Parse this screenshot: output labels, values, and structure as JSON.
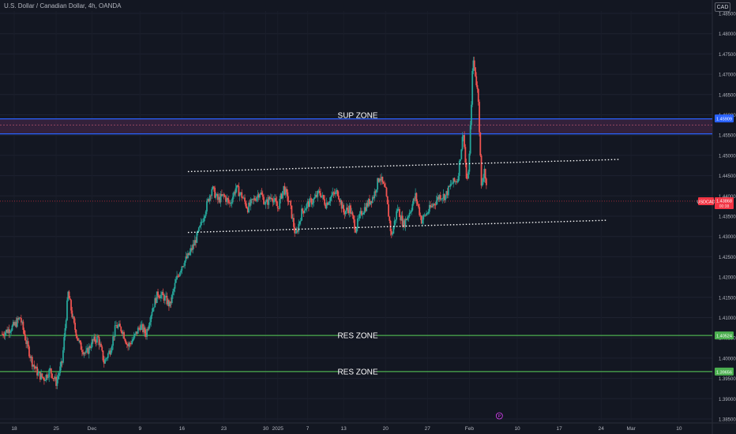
{
  "header": {
    "symbol_title": "U.S. Dollar / Canadian Dollar, 4h, OANDA",
    "currency_button": "CAD"
  },
  "colors": {
    "background": "#131722",
    "up_candle": "#26a69a",
    "down_candle": "#ef5350",
    "sup_zone_line": "#2962ff",
    "sup_zone_fill": "#3a2340",
    "res_zone_line": "#4caf50",
    "channel_line": "#ffffff",
    "price_label_bg": "#f23645",
    "axis_text": "#b2b5be"
  },
  "chart_data": {
    "type": "candlestick",
    "symbol": "USDCAD",
    "interval": "4h",
    "source": "OANDA",
    "ylim": [
      1.385,
      1.485
    ],
    "y_ticks": [
      "1.48500",
      "1.48000",
      "1.47500",
      "1.47000",
      "1.46500",
      "1.46000",
      "1.45500",
      "1.45000",
      "1.44500",
      "1.44000",
      "1.43500",
      "1.43000",
      "1.42500",
      "1.42000",
      "1.41500",
      "1.41000",
      "1.40500",
      "1.40000",
      "1.39500",
      "1.39000",
      "1.38500"
    ],
    "x_ticks": [
      {
        "label": "18",
        "t": 0
      },
      {
        "label": "25",
        "t": 7
      },
      {
        "label": "Dec",
        "t": 13
      },
      {
        "label": "9",
        "t": 21
      },
      {
        "label": "16",
        "t": 28
      },
      {
        "label": "23",
        "t": 35
      },
      {
        "label": "30",
        "t": 42
      },
      {
        "label": "2025",
        "t": 44
      },
      {
        "label": "7",
        "t": 49
      },
      {
        "label": "13",
        "t": 55
      },
      {
        "label": "20",
        "t": 62
      },
      {
        "label": "27",
        "t": 69
      },
      {
        "label": "Feb",
        "t": 76
      },
      {
        "label": "10",
        "t": 84
      },
      {
        "label": "17",
        "t": 91
      },
      {
        "label": "24",
        "t": 98
      },
      {
        "label": "Mar",
        "t": 103
      },
      {
        "label": "10",
        "t": 111
      }
    ],
    "x_range_days": [
      -2,
      113
    ],
    "path": [
      [
        -2,
        1.406
      ],
      [
        0,
        1.408
      ],
      [
        1,
        1.41
      ],
      [
        2,
        1.404
      ],
      [
        3,
        1.399
      ],
      [
        4,
        1.396
      ],
      [
        5,
        1.395
      ],
      [
        6,
        1.397
      ],
      [
        7,
        1.394
      ],
      [
        8,
        1.399
      ],
      [
        9,
        1.416
      ],
      [
        10,
        1.408
      ],
      [
        11,
        1.403
      ],
      [
        12,
        1.401
      ],
      [
        13,
        1.404
      ],
      [
        14,
        1.405
      ],
      [
        15,
        1.399
      ],
      [
        16,
        1.402
      ],
      [
        17,
        1.408
      ],
      [
        18,
        1.407
      ],
      [
        19,
        1.403
      ],
      [
        20,
        1.405
      ],
      [
        21,
        1.408
      ],
      [
        22,
        1.406
      ],
      [
        23,
        1.412
      ],
      [
        24,
        1.416
      ],
      [
        25,
        1.415
      ],
      [
        26,
        1.413
      ],
      [
        27,
        1.419
      ],
      [
        28,
        1.423
      ],
      [
        29,
        1.425
      ],
      [
        30,
        1.428
      ],
      [
        31,
        1.432
      ],
      [
        32,
        1.437
      ],
      [
        33,
        1.442
      ],
      [
        34,
        1.439
      ],
      [
        35,
        1.44
      ],
      [
        36,
        1.438
      ],
      [
        37,
        1.442
      ],
      [
        38,
        1.44
      ],
      [
        39,
        1.437
      ],
      [
        40,
        1.439
      ],
      [
        41,
        1.441
      ],
      [
        42,
        1.438
      ],
      [
        43,
        1.44
      ],
      [
        44,
        1.437
      ],
      [
        45,
        1.442
      ],
      [
        46,
        1.438
      ],
      [
        47,
        1.43
      ],
      [
        48,
        1.436
      ],
      [
        49,
        1.438
      ],
      [
        50,
        1.439
      ],
      [
        51,
        1.441
      ],
      [
        52,
        1.438
      ],
      [
        53,
        1.44
      ],
      [
        54,
        1.441
      ],
      [
        55,
        1.436
      ],
      [
        56,
        1.437
      ],
      [
        57,
        1.432
      ],
      [
        58,
        1.436
      ],
      [
        59,
        1.438
      ],
      [
        60,
        1.44
      ],
      [
        61,
        1.445
      ],
      [
        62,
        1.441
      ],
      [
        63,
        1.43
      ],
      [
        64,
        1.437
      ],
      [
        65,
        1.433
      ],
      [
        66,
        1.436
      ],
      [
        67,
        1.44
      ],
      [
        68,
        1.434
      ],
      [
        69,
        1.436
      ],
      [
        70,
        1.438
      ],
      [
        71,
        1.44
      ],
      [
        72,
        1.44
      ],
      [
        73,
        1.443
      ],
      [
        74,
        1.444
      ],
      [
        75,
        1.456
      ],
      [
        75.6,
        1.442
      ],
      [
        76,
        1.45
      ],
      [
        76.6,
        1.474
      ],
      [
        77,
        1.47
      ],
      [
        77.5,
        1.464
      ],
      [
        78,
        1.442
      ],
      [
        78.5,
        1.447
      ],
      [
        79,
        1.439
      ]
    ],
    "annotations": [
      {
        "text": "SUP ZONE",
        "kind": "zone",
        "top": 1.459,
        "bottom": 1.4553,
        "mid": 1.4575
      },
      {
        "text": "RES ZONE",
        "kind": "level",
        "price": 1.4056
      },
      {
        "text": "RES ZONE",
        "kind": "level",
        "price": 1.3967
      }
    ],
    "channel": {
      "upper": [
        [
          29,
          1.446
        ],
        [
          101,
          1.449
        ]
      ],
      "lower": [
        [
          29,
          1.431
        ],
        [
          99,
          1.434
        ]
      ]
    },
    "price_labels": [
      {
        "value": "1.45909",
        "price": 1.4591,
        "color": "#2962ff"
      },
      {
        "symbol": "USDCAD",
        "value": "1.43868",
        "sub": "00:38",
        "price": 1.4387,
        "color": "#f23645"
      },
      {
        "value": "1.40524",
        "price": 1.4056,
        "color": "#4caf50"
      },
      {
        "value": "1.39656",
        "price": 1.3967,
        "color": "#4caf50"
      }
    ],
    "event_marker": {
      "t": 81,
      "label": "P"
    }
  }
}
